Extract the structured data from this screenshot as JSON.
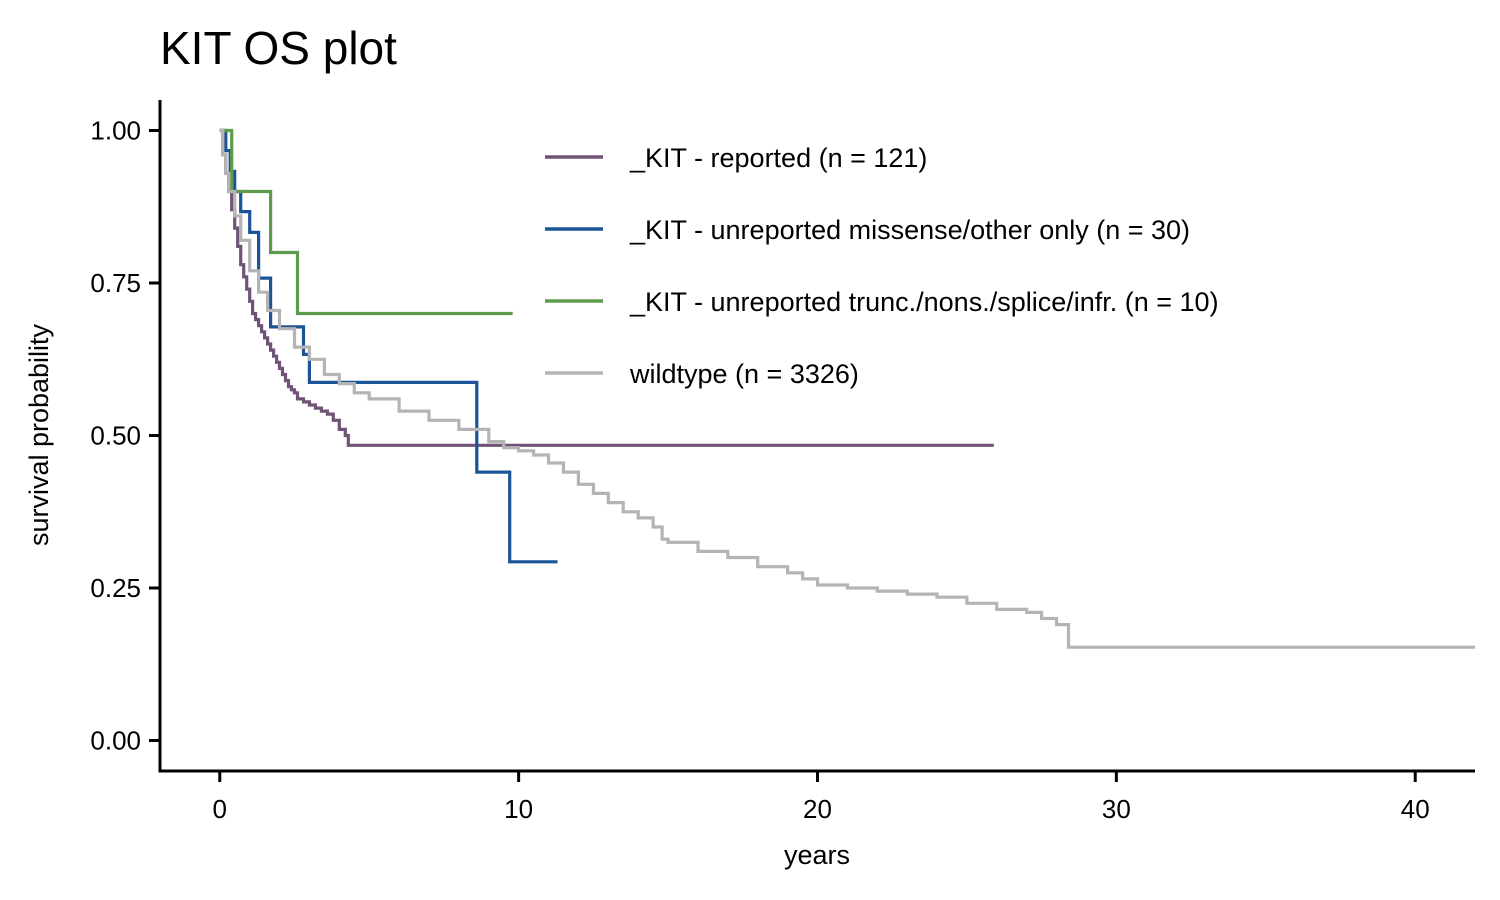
{
  "chart_data": {
    "type": "line",
    "step": true,
    "title": "KIT OS plot",
    "xlabel": "years",
    "ylabel": "survival probability",
    "xlim": [
      -2,
      42
    ],
    "ylim": [
      -0.05,
      1.05
    ],
    "xticks": [
      0,
      10,
      20,
      30,
      40
    ],
    "xtick_labels": [
      "0",
      "10",
      "20",
      "30",
      "40"
    ],
    "yticks": [
      0,
      0.25,
      0.5,
      0.75,
      1.0
    ],
    "ytick_labels": [
      "0.00",
      "0.25",
      "0.50",
      "0.75",
      "1.00"
    ],
    "grid": false,
    "legend_position": "top-right",
    "series": [
      {
        "name": "_KIT - reported (n = 121)",
        "color": "#715377",
        "x": [
          0,
          0.1,
          0.2,
          0.3,
          0.4,
          0.5,
          0.6,
          0.7,
          0.8,
          0.9,
          1.0,
          1.1,
          1.2,
          1.3,
          1.4,
          1.5,
          1.6,
          1.7,
          1.8,
          1.9,
          2.0,
          2.1,
          2.2,
          2.3,
          2.4,
          2.5,
          2.6,
          2.8,
          3.0,
          3.2,
          3.4,
          3.6,
          3.8,
          4.0,
          4.2,
          4.3,
          25.9
        ],
        "y": [
          1.0,
          0.96,
          0.93,
          0.9,
          0.87,
          0.84,
          0.81,
          0.78,
          0.76,
          0.74,
          0.72,
          0.7,
          0.69,
          0.68,
          0.67,
          0.66,
          0.65,
          0.64,
          0.63,
          0.62,
          0.61,
          0.6,
          0.59,
          0.58,
          0.575,
          0.57,
          0.56,
          0.555,
          0.55,
          0.545,
          0.54,
          0.535,
          0.525,
          0.51,
          0.5,
          0.484,
          0.484
        ]
      },
      {
        "name": "_KIT - unreported missense/other only (n = 30)",
        "color": "#1c5597",
        "x": [
          0,
          0.2,
          0.35,
          0.5,
          0.7,
          1.0,
          1.3,
          1.7,
          2.0,
          2.8,
          3.0,
          8.6,
          9.7,
          11.3
        ],
        "y": [
          1.0,
          0.967,
          0.933,
          0.9,
          0.867,
          0.833,
          0.758,
          0.678,
          0.678,
          0.633,
          0.587,
          0.44,
          0.293,
          0.293
        ]
      },
      {
        "name": "_KIT - unreported trunc./nons./splice/infr. (n = 10)",
        "color": "#5e9b4c",
        "x": [
          0,
          0.4,
          1.7,
          2.6,
          9.8
        ],
        "y": [
          1.0,
          0.9,
          0.8,
          0.7,
          0.7
        ]
      },
      {
        "name": "wildtype (n = 3326)",
        "color": "#b4b4b4",
        "x": [
          0,
          0.1,
          0.2,
          0.3,
          0.5,
          0.7,
          1.0,
          1.3,
          1.6,
          2.0,
          2.5,
          3.0,
          3.5,
          4.0,
          4.5,
          5.0,
          6.0,
          7.0,
          8.0,
          9.0,
          9.5,
          10.0,
          10.5,
          11.0,
          11.5,
          12.0,
          12.5,
          13.0,
          13.5,
          14.0,
          14.5,
          14.8,
          15.0,
          16.0,
          17.0,
          18.0,
          19.0,
          19.5,
          20.0,
          21.0,
          22.0,
          23.0,
          24.0,
          25.0,
          26.0,
          27.0,
          27.5,
          28.0,
          28.4,
          42.0
        ],
        "y": [
          1.0,
          0.96,
          0.93,
          0.9,
          0.86,
          0.82,
          0.77,
          0.735,
          0.705,
          0.675,
          0.645,
          0.625,
          0.6,
          0.585,
          0.57,
          0.56,
          0.54,
          0.525,
          0.51,
          0.49,
          0.48,
          0.475,
          0.468,
          0.455,
          0.44,
          0.42,
          0.405,
          0.39,
          0.375,
          0.365,
          0.35,
          0.33,
          0.325,
          0.31,
          0.3,
          0.285,
          0.275,
          0.265,
          0.255,
          0.25,
          0.245,
          0.24,
          0.235,
          0.225,
          0.215,
          0.21,
          0.2,
          0.19,
          0.153,
          0.153
        ]
      }
    ]
  }
}
